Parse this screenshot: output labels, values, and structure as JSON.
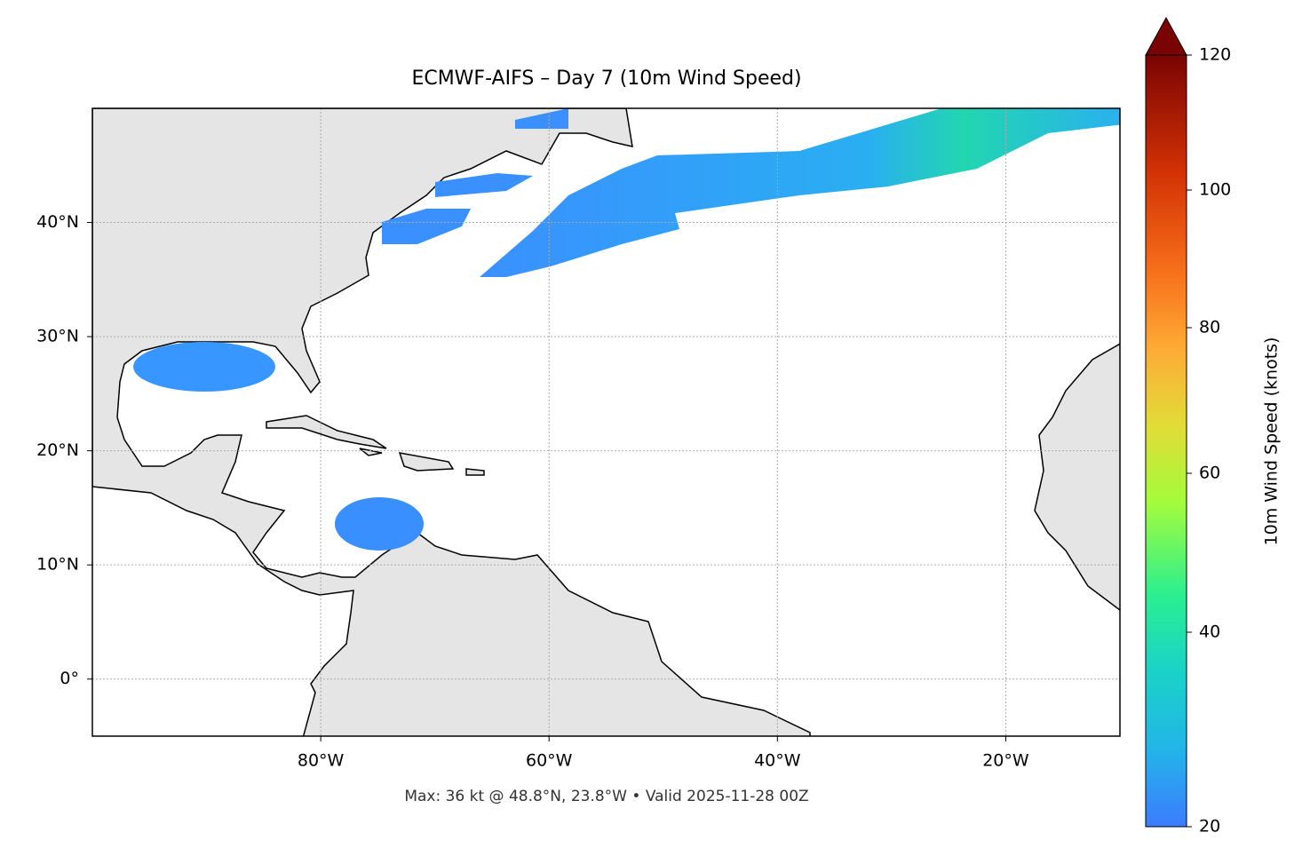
{
  "map": {
    "title": "ECMWF-AIFS – Day 7 (10m Wind Speed)",
    "xlim": [
      -100,
      -10
    ],
    "ylim": [
      -5,
      50
    ],
    "xticks": [
      {
        "value": -80,
        "label": "80°W"
      },
      {
        "value": -60,
        "label": "60°W"
      },
      {
        "value": -40,
        "label": "40°W"
      },
      {
        "value": -20,
        "label": "20°W"
      }
    ],
    "yticks": [
      {
        "value": 0,
        "label": "0°"
      },
      {
        "value": 10,
        "label": "10°N"
      },
      {
        "value": 20,
        "label": "20°N"
      },
      {
        "value": 30,
        "label": "30°N"
      },
      {
        "value": 40,
        "label": "40°N"
      }
    ],
    "colorbar": {
      "label": "10m Wind Speed (knots)",
      "ticks": [
        20,
        40,
        60,
        80,
        100,
        120
      ]
    },
    "footer": "Max: 36 kt @ 48.8°N, 23.8°W • Valid 2025-11-28 00Z"
  }
}
